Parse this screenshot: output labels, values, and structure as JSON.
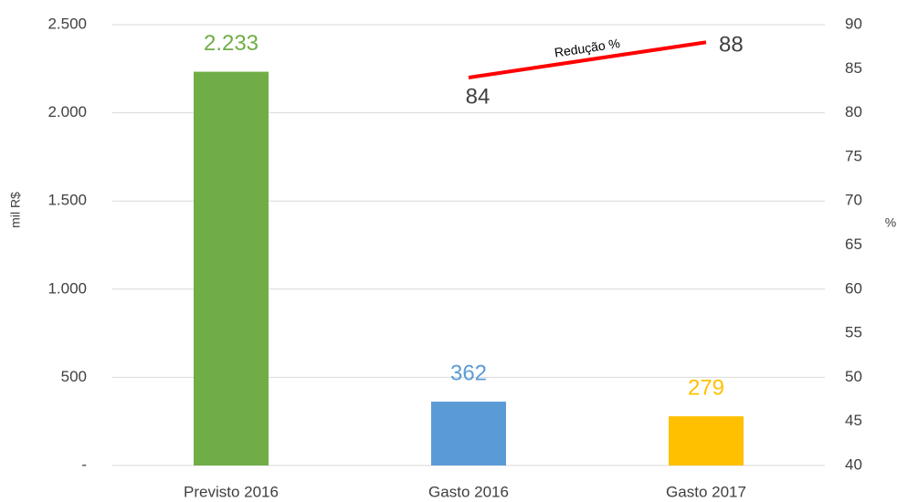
{
  "chart_data": {
    "type": "bar",
    "categories": [
      "Previsto 2016",
      "Gasto 2016",
      "Gasto 2017"
    ],
    "ylabel": "mil  R$",
    "y2label": "%",
    "ylim": [
      0,
      2500
    ],
    "yticks": [
      {
        "value": 0,
        "label": "-"
      },
      500,
      {
        "value": 1000,
        "label": "1.000"
      },
      {
        "value": 1500,
        "label": "1.500"
      },
      {
        "value": 2000,
        "label": "2.000"
      },
      {
        "value": 2500,
        "label": "2.500"
      }
    ],
    "y2lim": [
      40,
      90
    ],
    "y2ticks": [
      40,
      45,
      50,
      55,
      60,
      65,
      70,
      75,
      80,
      85,
      90
    ],
    "grid": true,
    "series": [
      {
        "type": "bar",
        "colors": [
          "#70ad47",
          "#5b9bd5",
          "#ffc000"
        ],
        "values": [
          2233,
          362,
          279
        ],
        "value_labels": [
          "2.233",
          "362",
          "279"
        ]
      },
      {
        "type": "line",
        "name": "Redução %",
        "axis": "y2",
        "color": "#ff0000",
        "values": [
          null,
          84,
          88
        ]
      }
    ]
  }
}
